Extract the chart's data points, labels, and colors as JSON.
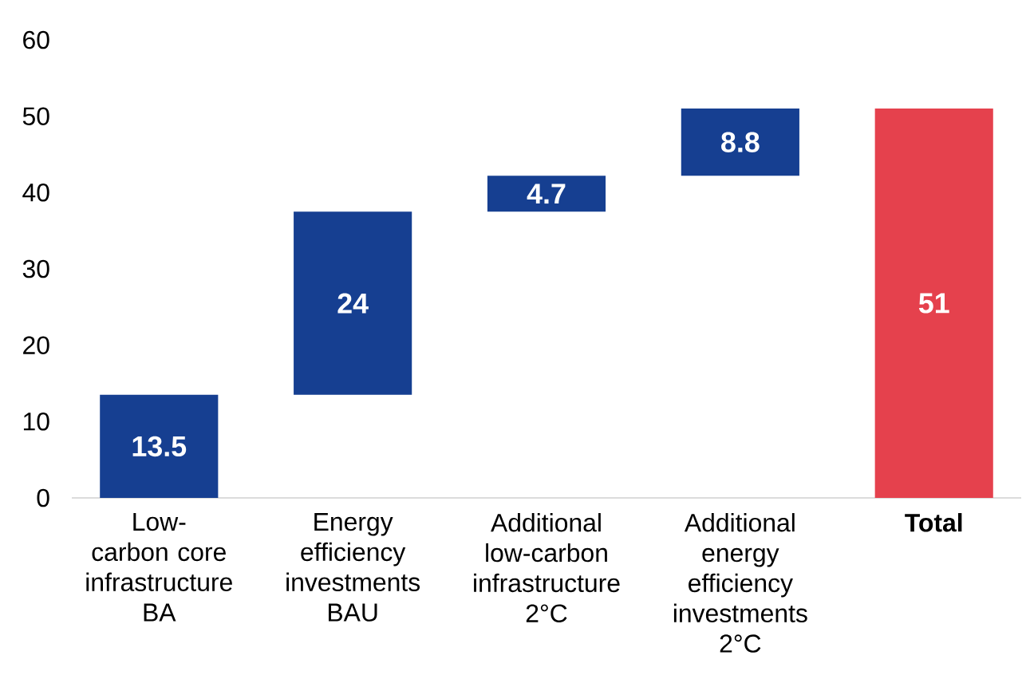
{
  "chart_data": {
    "type": "bar",
    "categories": [
      "Low-carbon core infrastructure BA",
      "Energy efficiency investments BAU",
      "Additional low-carbon infrastructure 2°C",
      "Additional energy efficiency investments 2°C",
      "**Total**"
    ],
    "values": [
      13.5,
      24,
      4.7,
      8.8,
      51
    ],
    "base": [
      0,
      13.5,
      37.5,
      42.2,
      0
    ],
    "colors": [
      "#163f91",
      "#163f91",
      "#163f91",
      "#163f91",
      "#e5414d"
    ],
    "ylim": [
      0,
      60
    ],
    "yticks": [
      0,
      10,
      20,
      30,
      40,
      50,
      60
    ],
    "data_labels": true,
    "grid": false
  }
}
